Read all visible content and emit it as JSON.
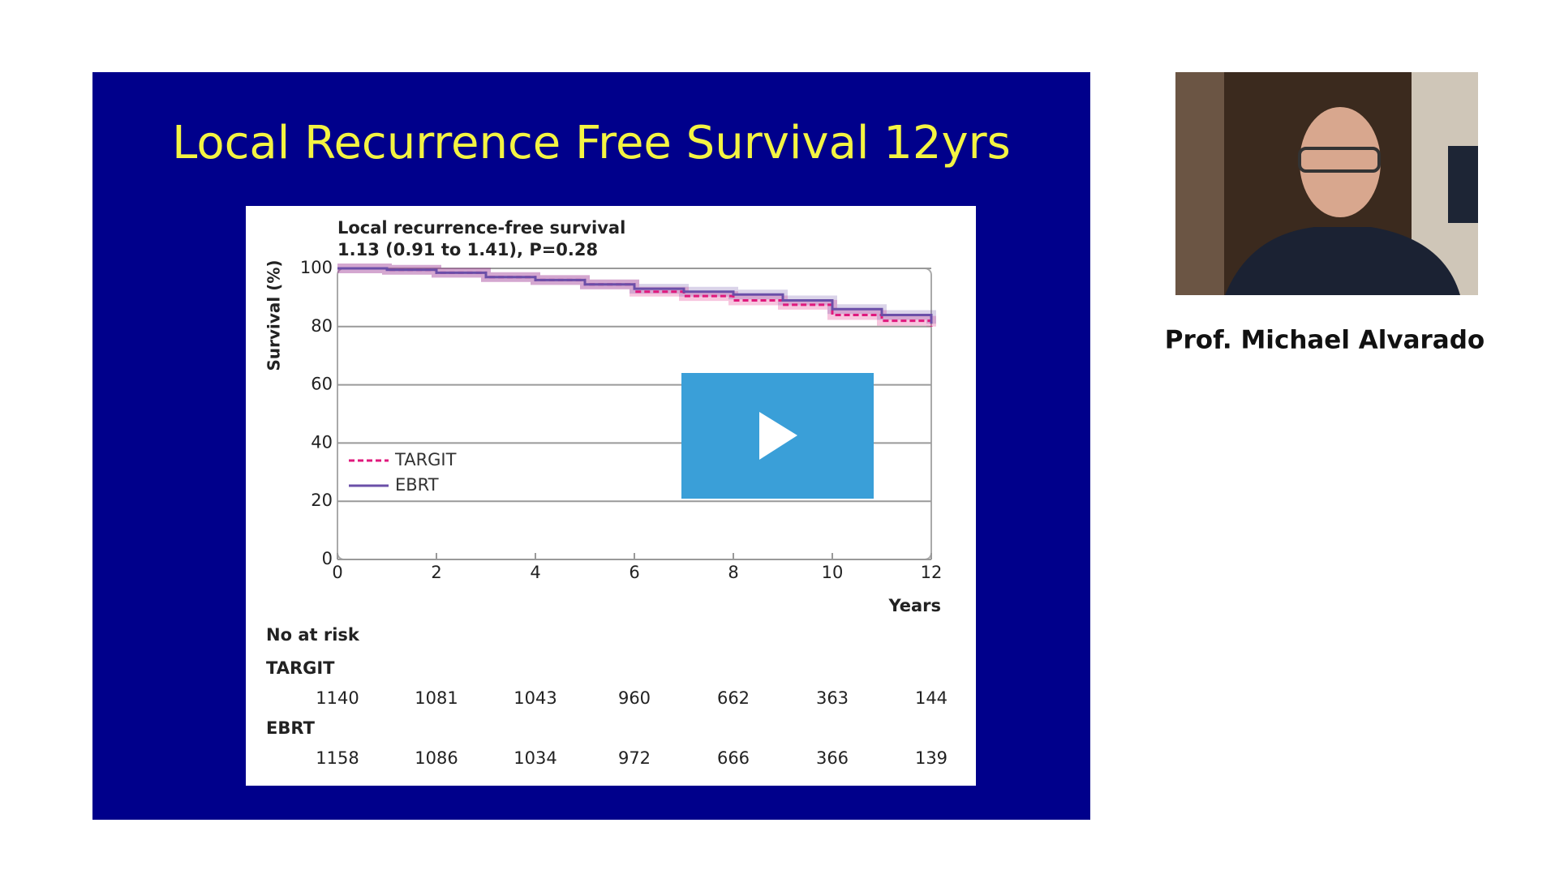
{
  "slide": {
    "title": "Local Recurrence Free Survival 12yrs"
  },
  "chart_data": {
    "type": "line",
    "title": "Local recurrence-free survival",
    "subtitle": "1.13 (0.91 to 1.41), P=0.28",
    "y_label": "Survival (%)",
    "x_label": "Years",
    "x": [
      0,
      1,
      2,
      3,
      4,
      5,
      6,
      7,
      8,
      9,
      10,
      11,
      12
    ],
    "series": [
      {
        "name": "TARGIT",
        "color": "#e0197d",
        "values": [
          100,
          99.5,
          98.5,
          97,
          96,
          94.5,
          92,
          90.5,
          89,
          87.5,
          84,
          82,
          80
        ]
      },
      {
        "name": "EBRT",
        "color": "#6b4fa8",
        "values": [
          100,
          99.5,
          98.5,
          97,
          96,
          94.5,
          93,
          92,
          91,
          89,
          86,
          84,
          81
        ]
      }
    ],
    "xlim": [
      0,
      12
    ],
    "xticks": [
      0,
      2,
      4,
      6,
      8,
      10,
      12
    ],
    "ylim": [
      0,
      100
    ],
    "yticks": [
      0,
      20,
      40,
      60,
      80,
      100
    ],
    "grid": true
  },
  "risk_table": {
    "title": "No at risk",
    "rows": [
      {
        "name": "TARGIT",
        "values": [
          1140,
          1081,
          1043,
          960,
          662,
          363,
          144
        ]
      },
      {
        "name": "EBRT",
        "values": [
          1158,
          1086,
          1034,
          972,
          666,
          366,
          139
        ]
      }
    ]
  },
  "presenter": {
    "name": "Prof. Michael Alvarado"
  }
}
